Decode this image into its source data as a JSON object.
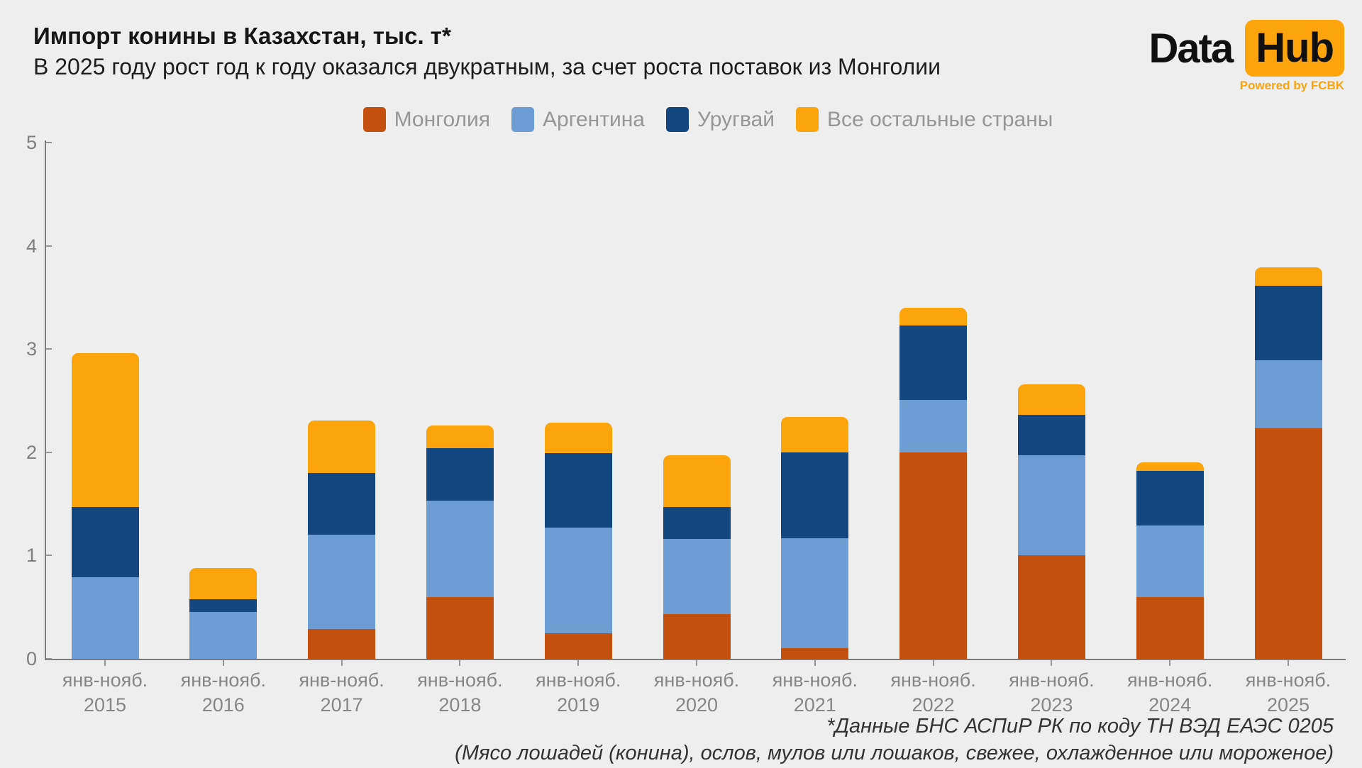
{
  "header": {
    "title": "Импорт конины в Казахстан, тыс. т*",
    "subtitle": "В 2025 году рост год к году оказался двукратным, за счет роста поставок из Монголии"
  },
  "logo": {
    "part1": "Data",
    "part2": "Hub",
    "tagline": "Powered by FCBK",
    "accent": "#fba40c"
  },
  "chart_data": {
    "type": "bar",
    "stacked": true,
    "title": "Импорт конины в Казахстан, тыс. т*",
    "subtitle": "В 2025 году рост год к году оказался двукратным, за счет роста поставок из Монголии",
    "unit": "тыс. т",
    "x_period_label": "янв-нояб.",
    "categories": [
      "2015",
      "2016",
      "2017",
      "2018",
      "2019",
      "2020",
      "2021",
      "2022",
      "2023",
      "2024",
      "2025"
    ],
    "series": [
      {
        "name": "Монголия",
        "color": "#c3500e",
        "values": [
          0,
          0,
          0.29,
          0.6,
          0.25,
          0.43,
          0.1,
          2.0,
          1.0,
          0.6,
          2.23
        ]
      },
      {
        "name": "Аргентина",
        "color": "#6d9dd3",
        "values": [
          0.79,
          0.45,
          0.91,
          0.93,
          1.02,
          0.73,
          1.07,
          0.51,
          0.97,
          0.69,
          0.66
        ]
      },
      {
        "name": "Уругвай",
        "color": "#14467f",
        "values": [
          0.68,
          0.13,
          0.6,
          0.51,
          0.72,
          0.31,
          0.83,
          0.72,
          0.39,
          0.53,
          0.72
        ]
      },
      {
        "name": "Все остальные страны",
        "color": "#fba40c",
        "values": [
          1.49,
          0.3,
          0.51,
          0.22,
          0.3,
          0.5,
          0.34,
          0.17,
          0.3,
          0.08,
          0.18
        ]
      }
    ],
    "totals": [
      2.96,
      0.88,
      2.31,
      2.26,
      2.29,
      1.97,
      2.34,
      3.4,
      2.66,
      1.9,
      3.79
    ],
    "ylim": [
      0,
      5
    ],
    "yticks": [
      0,
      1,
      2,
      3,
      4,
      5
    ],
    "grid": false,
    "legend_position": "top"
  },
  "footnote": {
    "line1": "*Данные БНС АСПиР РК по коду ТН ВЭД ЕАЭС 0205",
    "line2": "(Мясо лошадей (конина), ослов, мулов или лошаков, свежее, охлажденное или мороженое)"
  }
}
